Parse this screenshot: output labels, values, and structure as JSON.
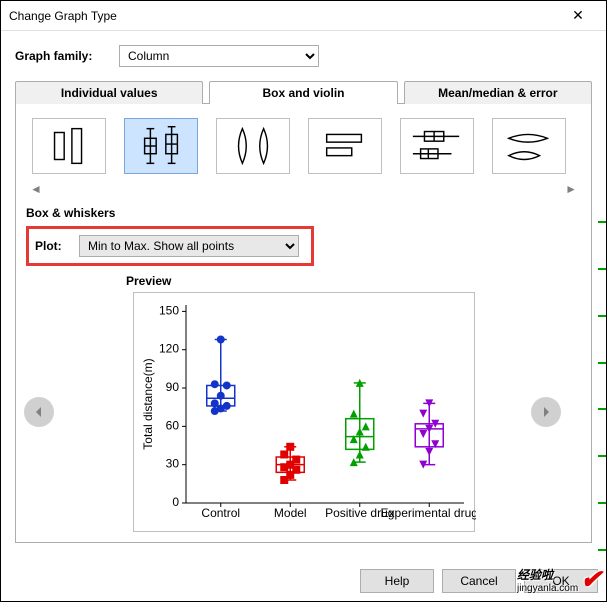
{
  "window": {
    "title": "Change Graph Type"
  },
  "family": {
    "label": "Graph family:",
    "value": "Column"
  },
  "tabs": [
    {
      "label": "Individual values",
      "active": false
    },
    {
      "label": "Box and violin",
      "active": true
    },
    {
      "label": "Mean/median & error",
      "active": false
    }
  ],
  "section": {
    "box_whiskers": "Box & whiskers",
    "plot_label": "Plot:",
    "plot_value": "Min to Max. Show all points",
    "preview": "Preview"
  },
  "buttons": {
    "help": "Help",
    "cancel": "Cancel",
    "ok": "OK"
  },
  "watermark": {
    "main": "经验啦",
    "sub": "jingyanla.com"
  },
  "preview_chart": {
    "type": "box-with-points",
    "ylabel": "Total distance(m)",
    "ylim": [
      0,
      155
    ],
    "yticks": [
      0,
      30,
      60,
      90,
      120,
      150
    ],
    "categories": [
      "Control",
      "Model",
      "Positive drug",
      "Experimental drug"
    ],
    "series": [
      {
        "color": "#1434c9",
        "marker": "circle",
        "box": {
          "min": 72,
          "q1": 76,
          "med": 82,
          "q3": 92,
          "max": 128
        },
        "points": [
          72,
          74,
          76,
          78,
          84,
          92,
          93,
          128
        ]
      },
      {
        "color": "#e00000",
        "marker": "square",
        "box": {
          "min": 18,
          "q1": 24,
          "med": 30,
          "q3": 36,
          "max": 44
        },
        "points": [
          18,
          22,
          26,
          28,
          30,
          34,
          38,
          44
        ]
      },
      {
        "color": "#00a000",
        "marker": "triangle-up",
        "box": {
          "min": 32,
          "q1": 42,
          "med": 52,
          "q3": 66,
          "max": 94
        },
        "points": [
          32,
          38,
          44,
          50,
          56,
          60,
          70,
          94
        ]
      },
      {
        "color": "#9000d0",
        "marker": "triangle-down",
        "box": {
          "min": 30,
          "q1": 44,
          "med": 58,
          "q3": 62,
          "max": 78
        },
        "points": [
          30,
          40,
          46,
          54,
          58,
          62,
          70,
          78
        ]
      }
    ],
    "bg": "#ffffff",
    "axis_color": "#000000",
    "label_fontsize": 9,
    "tick_fontsize": 9
  },
  "iconstrip": {
    "selected_index": 1
  }
}
